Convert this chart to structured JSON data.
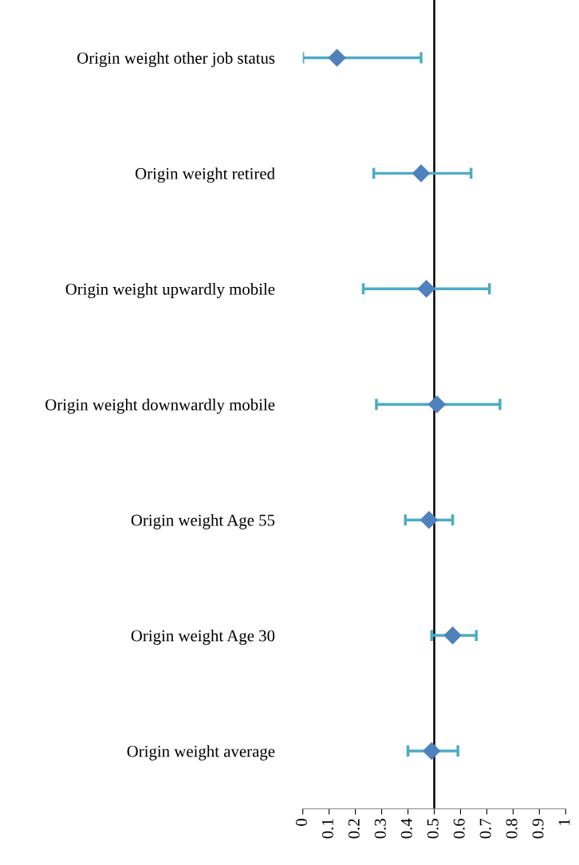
{
  "chart_data": {
    "type": "scatter",
    "orientation": "horizontal",
    "categories": [
      "Origin weight other job status",
      "Origin weight retired",
      "Origin weight upwardly mobile",
      "Origin weight downwardly mobile",
      "Origin weight Age 55",
      "Origin weight Age 30",
      "Origin weight average"
    ],
    "series": [
      {
        "color": "#4f81bd",
        "values": [
          0.13,
          0.45,
          0.47,
          0.51,
          0.48,
          0.57,
          0.49
        ],
        "errors": [
          [
            0.0,
            0.45
          ],
          [
            0.27,
            0.64
          ],
          [
            0.23,
            0.71
          ],
          [
            0.28,
            0.75
          ],
          [
            0.39,
            0.57
          ],
          [
            0.49,
            0.66
          ],
          [
            0.4,
            0.59
          ]
        ]
      }
    ],
    "xlim": [
      0,
      1
    ],
    "xticks": [
      0,
      0.1,
      0.2,
      0.3,
      0.4,
      0.5,
      0.6,
      0.7,
      0.8,
      0.9,
      1
    ],
    "ref_lines": [
      {
        "axis": "x",
        "value": 0.5,
        "color": "#000000"
      }
    ],
    "marker": "diamond",
    "grid": false,
    "legend": false
  }
}
